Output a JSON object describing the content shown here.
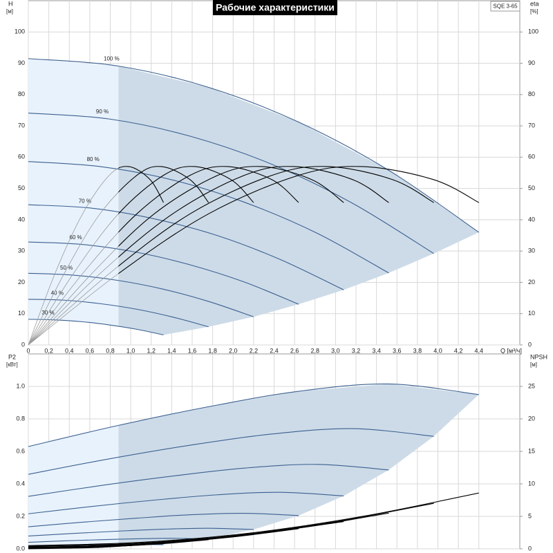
{
  "chart_data": [
    {
      "type": "line",
      "title": "Рабочие характеристики",
      "model": "SQE 3-65",
      "ylabel": "H",
      "yunit": "[м]",
      "y2label": "eta",
      "y2unit": "[%]",
      "xlabel": "Q [м³/ч]",
      "xlim": [
        0,
        4.8
      ],
      "ylim": [
        0,
        110
      ],
      "y2lim": [
        0,
        110
      ],
      "xticks": [
        0,
        {
          "value": 0.2,
          "label": "0,2"
        },
        {
          "value": 0.4,
          "label": "0,4"
        },
        {
          "value": 0.6,
          "label": "0,6"
        },
        {
          "value": 0.8,
          "label": "0,8"
        },
        {
          "value": 1.0,
          "label": "1,0"
        },
        {
          "value": 1.2,
          "label": "1,2"
        },
        {
          "value": 1.4,
          "label": "1,4"
        },
        {
          "value": 1.6,
          "label": "1,6"
        },
        {
          "value": 1.8,
          "label": "1,8"
        },
        {
          "value": 2.0,
          "label": "2,0"
        },
        {
          "value": 2.2,
          "label": "2,2"
        },
        {
          "value": 2.4,
          "label": "2,4"
        },
        {
          "value": 2.6,
          "label": "2,6"
        },
        {
          "value": 2.8,
          "label": "2,8"
        },
        {
          "value": 3.0,
          "label": "3,0"
        },
        {
          "value": 3.2,
          "label": "3,2"
        },
        {
          "value": 3.4,
          "label": "3,4"
        },
        {
          "value": 3.6,
          "label": "3,6"
        },
        {
          "value": 3.8,
          "label": "3,8"
        },
        {
          "value": 4.0,
          "label": "4,0"
        },
        {
          "value": 4.2,
          "label": "4,2"
        },
        {
          "value": 4.4,
          "label": "4,4"
        }
      ],
      "yticks": [
        0,
        10,
        20,
        30,
        40,
        50,
        60,
        70,
        80,
        90,
        100
      ],
      "y2ticks": [
        0,
        10,
        20,
        30,
        40,
        50,
        60,
        70,
        80,
        90,
        100
      ],
      "grid": true,
      "min_flow_q": 0.88,
      "region_color": "#cddbe8",
      "region_low_color": "#e8f2fc",
      "series": [
        {
          "name": "100 %",
          "color": "#3a5f8f",
          "x": [
            0,
            0.88,
            1.76,
            2.64,
            3.52,
            4.4
          ],
          "values": [
            91.5,
            89.1,
            82.3,
            71.2,
            55.8,
            36.0
          ]
        },
        {
          "name": "90 %",
          "color": "#3a5f8f",
          "x": [
            0,
            0.79,
            1.58,
            2.38,
            3.17,
            3.96
          ],
          "values": [
            74.1,
            72.2,
            66.7,
            57.7,
            45.2,
            29.2
          ]
        },
        {
          "name": "80 %",
          "color": "#3a5f8f",
          "x": [
            0,
            0.7,
            1.41,
            2.11,
            2.82,
            3.52
          ],
          "values": [
            58.6,
            57.0,
            52.7,
            45.6,
            35.7,
            23.0
          ]
        },
        {
          "name": "70 %",
          "color": "#3a5f8f",
          "x": [
            0,
            0.62,
            1.23,
            1.85,
            2.46,
            3.08
          ],
          "values": [
            44.8,
            43.7,
            40.3,
            34.9,
            27.3,
            17.6
          ]
        },
        {
          "name": "60 %",
          "color": "#3a5f8f",
          "x": [
            0,
            0.53,
            1.06,
            1.58,
            2.11,
            2.64
          ],
          "values": [
            32.9,
            32.1,
            29.6,
            25.6,
            20.1,
            13.0
          ]
        },
        {
          "name": "50 %",
          "color": "#3a5f8f",
          "x": [
            0,
            0.44,
            0.88,
            1.32,
            1.76,
            2.2
          ],
          "values": [
            22.9,
            22.3,
            20.6,
            17.8,
            13.9,
            9.0
          ]
        },
        {
          "name": "40 %",
          "color": "#3a5f8f",
          "x": [
            0,
            0.35,
            0.7,
            1.06,
            1.41,
            1.76
          ],
          "values": [
            14.6,
            14.3,
            13.2,
            11.4,
            8.9,
            5.8
          ]
        },
        {
          "name": "30 %",
          "color": "#3a5f8f",
          "x": [
            0,
            0.26,
            0.53,
            0.79,
            1.06,
            1.32
          ],
          "values": [
            8.2,
            8.0,
            7.4,
            6.4,
            5.0,
            3.2
          ]
        },
        {
          "axis": "y2",
          "color": "#000000",
          "low_color": "#9a9a9a",
          "x": [
            0,
            0.88,
            1.76,
            2.64,
            3.26,
            3.96,
            4.4
          ],
          "values": [
            0,
            22.8,
            41.9,
            54.2,
            57,
            52.8,
            45.5
          ]
        },
        {
          "axis": "y2",
          "color": "#000000",
          "low_color": "#9a9a9a",
          "x": [
            0,
            0.79,
            1.58,
            2.38,
            2.93,
            3.56,
            3.96
          ],
          "values": [
            0,
            22.8,
            41.9,
            54.2,
            57,
            52.8,
            45.5
          ]
        },
        {
          "axis": "y2",
          "color": "#000000",
          "low_color": "#9a9a9a",
          "x": [
            0,
            0.7,
            1.41,
            2.11,
            2.6,
            3.17,
            3.52
          ],
          "values": [
            0,
            22.8,
            41.9,
            54.2,
            57,
            52.8,
            45.5
          ]
        },
        {
          "axis": "y2",
          "color": "#000000",
          "low_color": "#9a9a9a",
          "x": [
            0,
            0.62,
            1.23,
            1.85,
            2.28,
            2.77,
            3.08
          ],
          "values": [
            0,
            22.8,
            41.9,
            54.2,
            57,
            52.8,
            45.5
          ]
        },
        {
          "axis": "y2",
          "color": "#000000",
          "low_color": "#9a9a9a",
          "x": [
            0,
            0.53,
            1.06,
            1.58,
            1.95,
            2.38,
            2.64
          ],
          "values": [
            0,
            22.8,
            41.9,
            54.2,
            57,
            52.8,
            45.5
          ]
        },
        {
          "axis": "y2",
          "color": "#000000",
          "low_color": "#9a9a9a",
          "x": [
            0,
            0.44,
            0.88,
            1.32,
            1.63,
            1.98,
            2.2
          ],
          "values": [
            0,
            22.8,
            41.9,
            54.2,
            57,
            52.8,
            45.5
          ]
        },
        {
          "axis": "y2",
          "color": "#000000",
          "low_color": "#9a9a9a",
          "x": [
            0,
            0.35,
            0.7,
            1.06,
            1.3,
            1.58,
            1.76
          ],
          "values": [
            0,
            22.8,
            41.9,
            54.2,
            57,
            52.8,
            45.5
          ]
        },
        {
          "axis": "y2",
          "color": "#000000",
          "low_color": "#9a9a9a",
          "x": [
            0,
            0.26,
            0.53,
            0.79,
            0.98,
            1.19,
            1.32
          ],
          "values": [
            0,
            22.8,
            41.9,
            54.2,
            57,
            52.8,
            45.5
          ]
        }
      ]
    },
    {
      "type": "line",
      "ylabel": "P2",
      "yunit": "[кВт]",
      "y2label": "NPSH",
      "y2unit": "[м]",
      "xlim": [
        0,
        4.8
      ],
      "ylim": [
        0,
        1.2
      ],
      "y2lim": [
        0,
        30
      ],
      "xgrid": [
        0,
        0.2,
        0.4,
        0.6,
        0.8,
        1.0,
        1.2,
        1.4,
        1.6,
        1.8,
        2.0,
        2.2,
        2.4,
        2.6,
        2.8,
        3.0,
        3.2,
        3.4,
        3.6,
        3.8,
        4.0,
        4.2,
        4.4
      ],
      "yticks": [
        {
          "value": 0,
          "label": "0.0"
        },
        0.2,
        0.4,
        0.6,
        0.8,
        {
          "value": 1,
          "label": "1.0"
        }
      ],
      "y2ticks": [
        0,
        5,
        10,
        15,
        20,
        25
      ],
      "grid": true,
      "min_flow_q": 0.88,
      "region_color": "#cddbe8",
      "region_low_color": "#e8f2fc",
      "series": [
        {
          "color": "#3a5f8f",
          "x": [
            0,
            0.88,
            1.76,
            2.64,
            3.52,
            4.4
          ],
          "values": [
            0.63,
            0.76,
            0.875,
            0.97,
            1.015,
            0.95
          ]
        },
        {
          "color": "#3a5f8f",
          "x": [
            0,
            0.79,
            1.58,
            2.38,
            3.17,
            3.96
          ],
          "values": [
            0.459,
            0.554,
            0.638,
            0.707,
            0.74,
            0.693
          ]
        },
        {
          "color": "#3a5f8f",
          "x": [
            0,
            0.7,
            1.41,
            2.11,
            2.82,
            3.52
          ],
          "values": [
            0.323,
            0.389,
            0.448,
            0.497,
            0.52,
            0.486
          ]
        },
        {
          "color": "#3a5f8f",
          "x": [
            0,
            0.62,
            1.23,
            1.85,
            2.46,
            3.08
          ],
          "values": [
            0.216,
            0.261,
            0.3,
            0.333,
            0.348,
            0.326
          ]
        },
        {
          "color": "#3a5f8f",
          "x": [
            0,
            0.53,
            1.06,
            1.58,
            2.11,
            2.64
          ],
          "values": [
            0.136,
            0.164,
            0.189,
            0.21,
            0.219,
            0.205
          ]
        },
        {
          "color": "#3a5f8f",
          "x": [
            0,
            0.44,
            0.88,
            1.32,
            1.76,
            2.2
          ],
          "values": [
            0.079,
            0.095,
            0.109,
            0.121,
            0.127,
            0.119
          ]
        },
        {
          "color": "#3a5f8f",
          "x": [
            0,
            0.35,
            0.7,
            1.06,
            1.41,
            1.76
          ],
          "values": [
            0.04,
            0.049,
            0.056,
            0.062,
            0.065,
            0.061
          ]
        },
        {
          "color": "#3a5f8f",
          "x": [
            0,
            0.26,
            0.53,
            0.79,
            1.06,
            1.32
          ],
          "values": [
            0.017,
            0.021,
            0.024,
            0.026,
            0.027,
            0.026
          ]
        },
        {
          "axis": "y2",
          "color": "#000000",
          "x": [
            0,
            1.1,
            2.2,
            3.3,
            4.4
          ],
          "values": [
            0.5,
            1.0,
            2.5,
            5.1,
            8.6
          ]
        },
        {
          "axis": "y2",
          "color": "#000000",
          "x": [
            0,
            0.99,
            1.98,
            2.97,
            3.96
          ],
          "values": [
            0.4,
            0.8,
            2.0,
            4.1,
            7.0
          ]
        },
        {
          "axis": "y2",
          "color": "#000000",
          "x": [
            0,
            0.88,
            1.76,
            2.64,
            3.52
          ],
          "values": [
            0.3,
            0.6,
            1.6,
            3.2,
            5.5
          ]
        },
        {
          "axis": "y2",
          "color": "#000000",
          "x": [
            0,
            0.77,
            1.54,
            2.31,
            3.08
          ],
          "values": [
            0.2,
            0.5,
            1.2,
            2.5,
            4.2
          ]
        },
        {
          "axis": "y2",
          "color": "#000000",
          "x": [
            0,
            0.66,
            1.32,
            1.98,
            2.64
          ],
          "values": [
            0.2,
            0.4,
            0.9,
            1.8,
            3.1
          ]
        },
        {
          "axis": "y2",
          "color": "#000000",
          "x": [
            0,
            0.55,
            1.1,
            1.65,
            2.2
          ],
          "values": [
            0.1,
            0.3,
            0.6,
            1.3,
            2.2
          ]
        },
        {
          "axis": "y2",
          "color": "#000000",
          "x": [
            0,
            0.44,
            0.88,
            1.32,
            1.76
          ],
          "values": [
            0.1,
            0.2,
            0.4,
            0.8,
            1.4
          ]
        },
        {
          "axis": "y2",
          "color": "#000000",
          "x": [
            0,
            0.33,
            0.66,
            0.99,
            1.32
          ],
          "values": [
            0,
            0.1,
            0.2,
            0.5,
            0.8
          ]
        }
      ]
    }
  ]
}
